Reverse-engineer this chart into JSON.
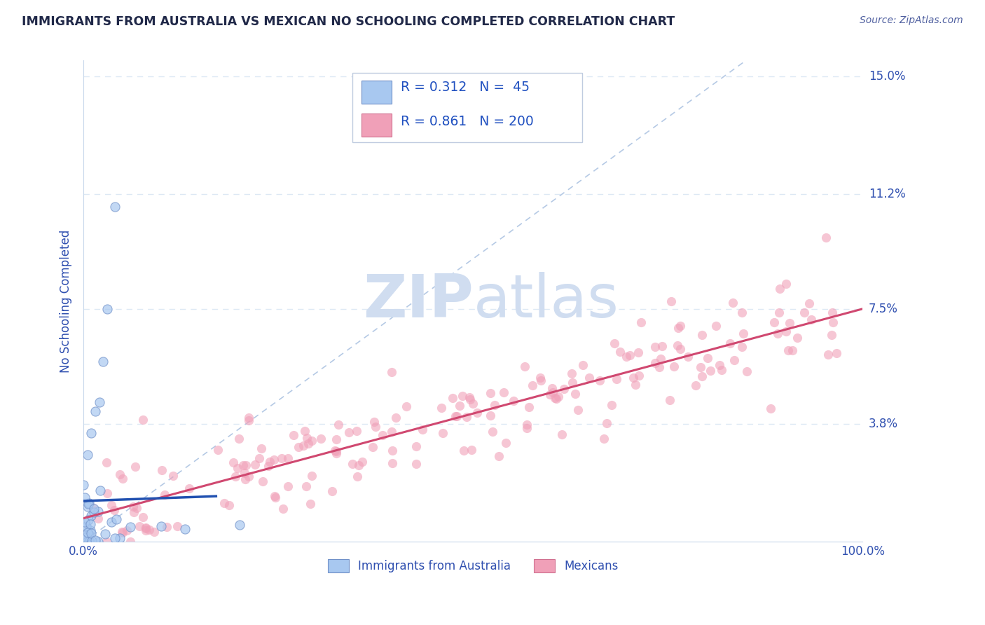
{
  "title": "IMMIGRANTS FROM AUSTRALIA VS MEXICAN NO SCHOOLING COMPLETED CORRELATION CHART",
  "source": "Source: ZipAtlas.com",
  "ylabel": "No Schooling Completed",
  "xlim": [
    0.0,
    1.0
  ],
  "ylim": [
    0.0,
    0.155
  ],
  "yticks": [
    0.038,
    0.075,
    0.112,
    0.15
  ],
  "ytick_labels": [
    "3.8%",
    "7.5%",
    "11.2%",
    "15.0%"
  ],
  "blue_R": 0.312,
  "blue_N": 45,
  "pink_R": 0.861,
  "pink_N": 200,
  "blue_color": "#a8c8f0",
  "blue_edge_color": "#7090c8",
  "pink_color": "#f0a0b8",
  "pink_edge_color": "#d07090",
  "blue_line_color": "#2050b0",
  "pink_line_color": "#d04870",
  "ref_line_color": "#a8c0e0",
  "watermark": "ZIPatlas",
  "watermark_color": "#d0ddf0",
  "title_color": "#202848",
  "source_color": "#5060a0",
  "label_color": "#3050b0",
  "legend_text_color": "#2050c0",
  "background_color": "#ffffff",
  "grid_color": "#dce8f4"
}
